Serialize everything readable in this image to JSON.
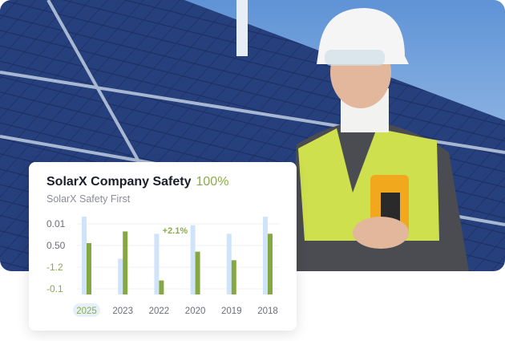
{
  "card": {
    "title": "SolarX Company Safety",
    "percent": "100%",
    "subtitle": "SolarX Safety First"
  },
  "chart_data": {
    "type": "bar",
    "title": "SolarX Company Safety",
    "subtitle": "SolarX Safety First",
    "categories": [
      "2025",
      "2023",
      "2022",
      "2020",
      "2019",
      "2018"
    ],
    "selected_category": "2025",
    "y_tick_labels": [
      "0.01",
      "0.50",
      "-1.2",
      "-0.1"
    ],
    "y_tick_colors": [
      "#6b6e78",
      "#6b6e78",
      "#8bab4a",
      "#8bab4a"
    ],
    "annotation": {
      "text": "+2.1%",
      "category": "2022"
    },
    "grid": true,
    "value_scale": "relative fraction of tallest bar",
    "series": [
      {
        "values": [
          1.0,
          0.46,
          0.78,
          0.89,
          0.78,
          1.0
        ],
        "color": "#cfe4fa"
      },
      {
        "values": [
          0.66,
          0.81,
          0.18,
          0.55,
          0.44,
          0.78
        ],
        "color": "#86a843"
      }
    ]
  },
  "colors": {
    "accent": "#8bab4a",
    "bar_light": "#cfe4fa",
    "bar_dark": "#86a843"
  }
}
